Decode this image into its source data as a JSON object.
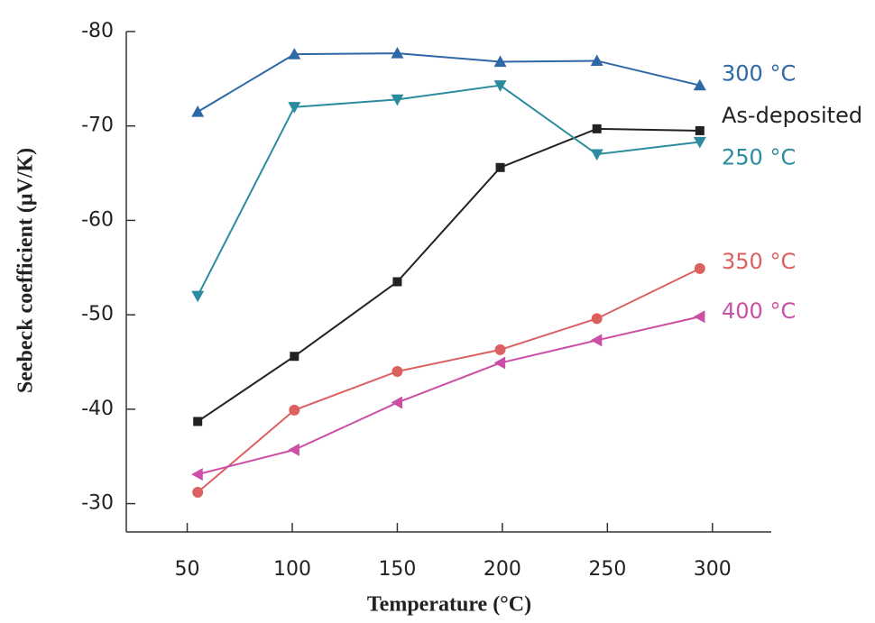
{
  "chart_data": {
    "type": "line",
    "xlabel": "Temperature (°C)",
    "ylabel": "Seebeck coefficient (μV/K)",
    "x": [
      55,
      101,
      150,
      199,
      245,
      294
    ],
    "xlim": [
      21,
      328
    ],
    "xticks": [
      50,
      100,
      150,
      200,
      250,
      300
    ],
    "ylim": [
      -80,
      -27
    ],
    "yticks": [
      -80,
      -70,
      -60,
      -50,
      -40,
      -30
    ],
    "y_reversed": true,
    "series": [
      {
        "name": "300 °C",
        "color": "#2e68a6",
        "marker": "triangle-up",
        "values": [
          -71.5,
          -77.6,
          -77.7,
          -76.8,
          -76.9,
          -74.3
        ]
      },
      {
        "name": "As-deposited",
        "color": "#222222",
        "marker": "square",
        "values": [
          -38.7,
          -45.6,
          -53.5,
          -65.6,
          -69.7,
          -69.5
        ]
      },
      {
        "name": "250 °C",
        "color": "#2a8c9e",
        "marker": "triangle-down",
        "values": [
          -52.0,
          -72.0,
          -72.8,
          -74.3,
          -67.0,
          -68.3
        ]
      },
      {
        "name": "350 °C",
        "color": "#dc6060",
        "marker": "circle",
        "values": [
          -31.2,
          -39.9,
          -44.0,
          -46.3,
          -49.6,
          -54.9
        ]
      },
      {
        "name": "400 °C",
        "color": "#cc4fa6",
        "marker": "triangle-left",
        "values": [
          -33.1,
          -35.7,
          -40.7,
          -44.9,
          -47.3,
          -49.8
        ]
      }
    ]
  }
}
